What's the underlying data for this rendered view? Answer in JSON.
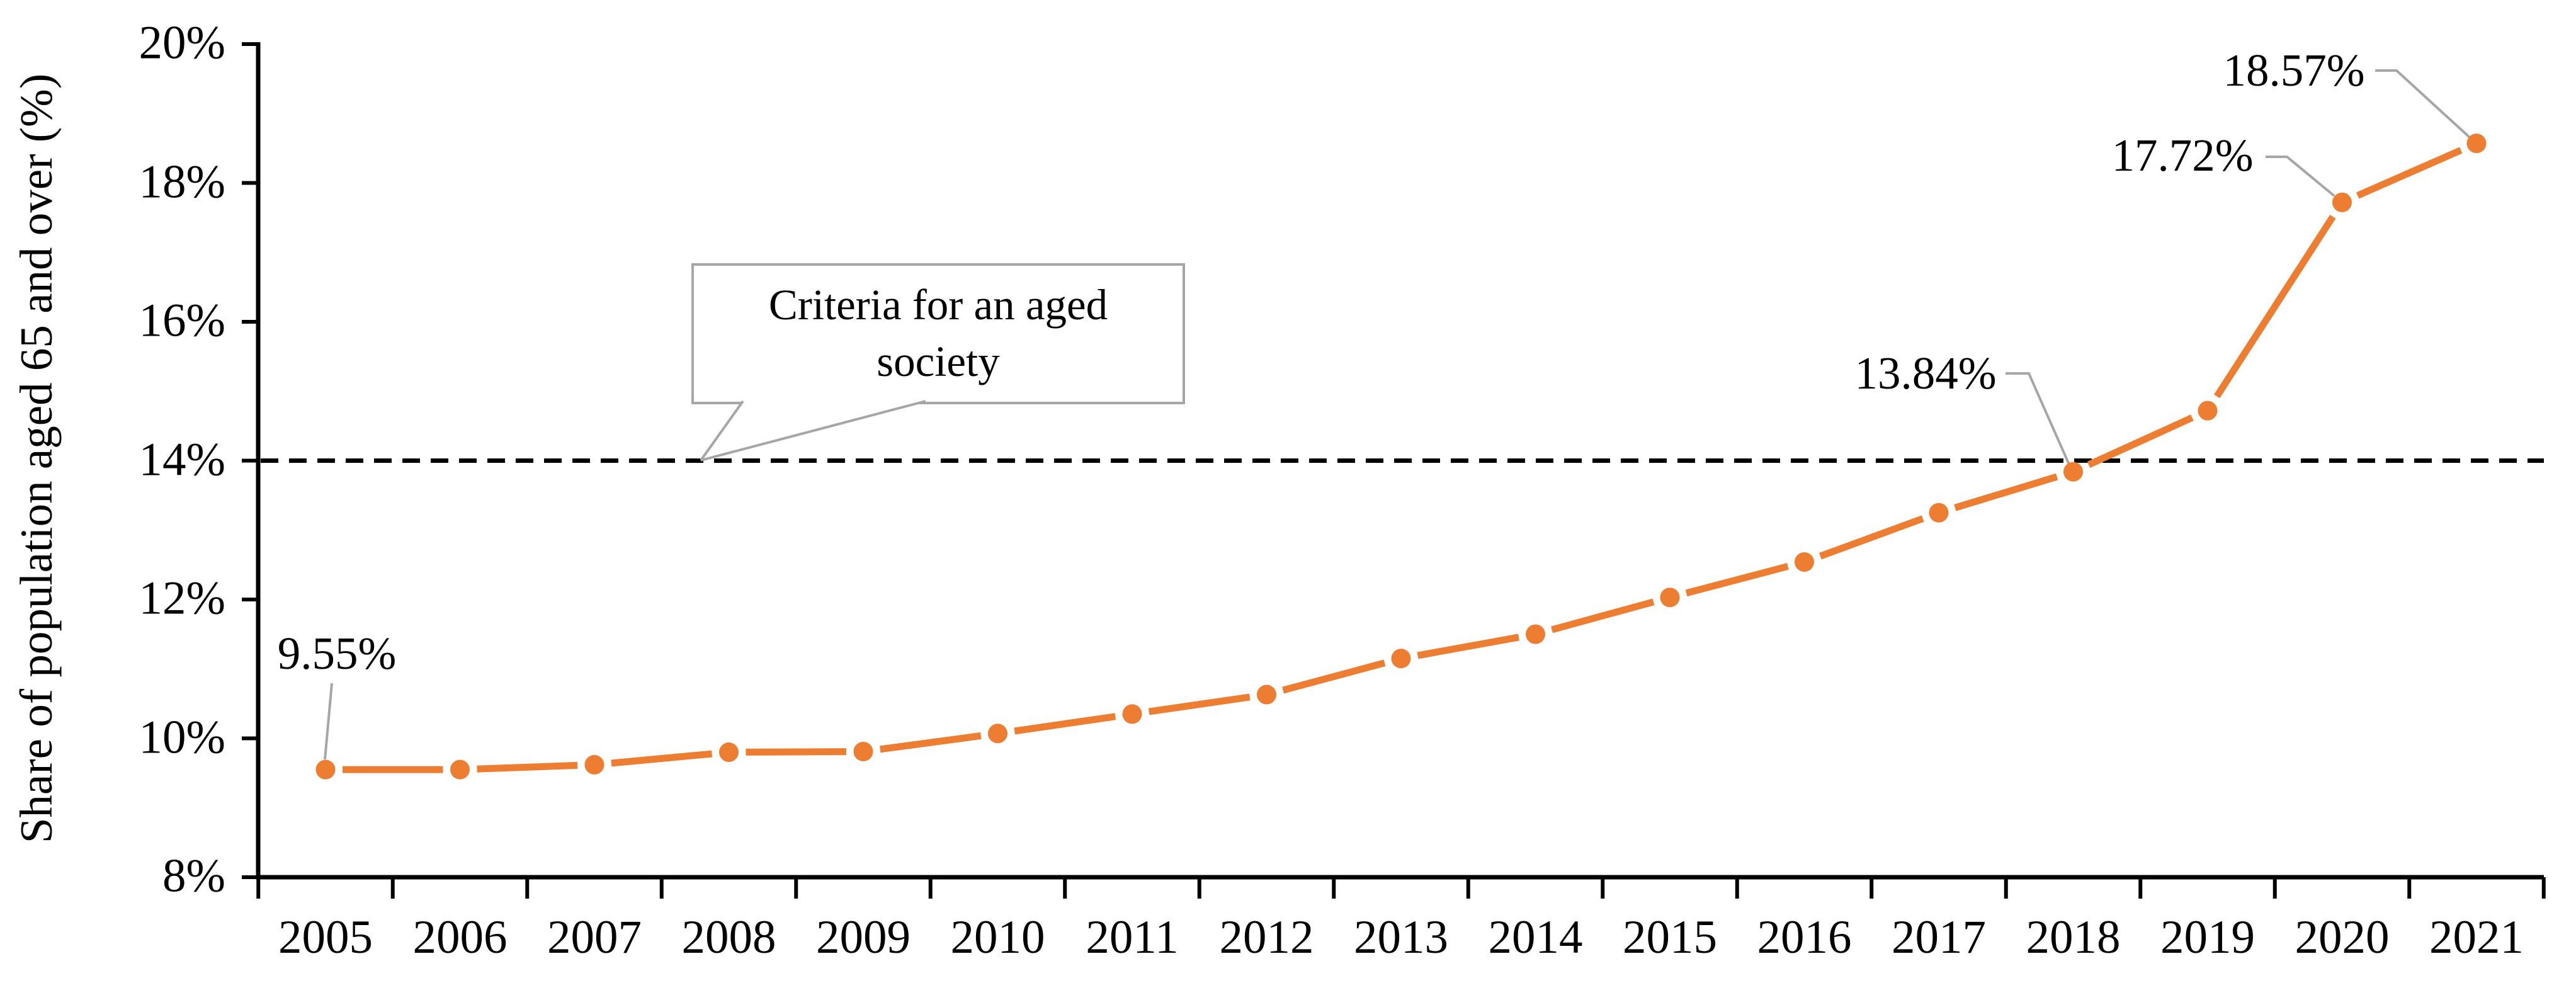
{
  "chart_data": {
    "type": "line",
    "title": "",
    "xlabel": "",
    "ylabel": "Share of population aged 65 and over (%)",
    "x": [
      2005,
      2006,
      2007,
      2008,
      2009,
      2010,
      2011,
      2012,
      2013,
      2014,
      2015,
      2016,
      2017,
      2018,
      2019,
      2020,
      2021
    ],
    "series": [
      {
        "name": "Share of population aged 65 and over",
        "color": "#ED7D31",
        "marker": "circle",
        "values": [
          9.55,
          9.55,
          9.62,
          9.8,
          9.81,
          10.07,
          10.35,
          10.63,
          11.15,
          11.5,
          12.03,
          12.54,
          13.25,
          13.84,
          14.72,
          17.72,
          18.57
        ]
      }
    ],
    "ylim": [
      8,
      20
    ],
    "yticks": [
      {
        "value": 20,
        "label": "20%"
      },
      {
        "value": 18,
        "label": "18%"
      },
      {
        "value": 16,
        "label": "16%"
      },
      {
        "value": 14,
        "label": "14%"
      },
      {
        "value": 12,
        "label": "12%"
      },
      {
        "value": 10,
        "label": "10%"
      },
      {
        "value": 8,
        "label": "8%"
      }
    ],
    "grid": false,
    "legend": "none",
    "axis_color": "#000000",
    "leader_color": "#A6A6A6",
    "reference_line": {
      "value": 14,
      "color": "#000000",
      "style": "dashed"
    },
    "callout": {
      "line1": "Criteria for an aged",
      "line2": "society",
      "border_color": "#A6A6A6",
      "points_to_value": 14
    },
    "annotations": [
      {
        "year": 2005,
        "value": 9.55,
        "label": "9.55%"
      },
      {
        "year": 2018,
        "value": 13.84,
        "label": "13.84%"
      },
      {
        "year": 2020,
        "value": 17.72,
        "label": "17.72%"
      },
      {
        "year": 2021,
        "value": 18.57,
        "label": "18.57%"
      }
    ]
  }
}
